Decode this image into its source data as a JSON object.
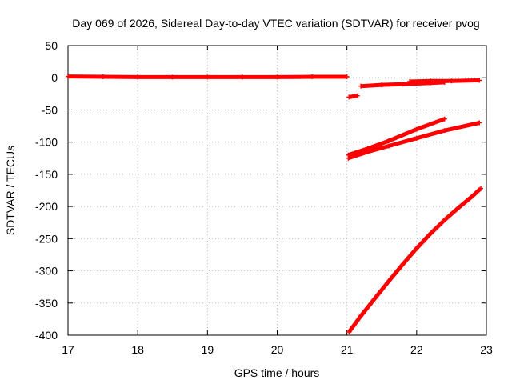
{
  "chart_data": {
    "type": "scatter",
    "title": "Day 069 of 2026, Sidereal Day-to-day VTEC variation (SDTVAR) for receiver pvog",
    "xlabel": "GPS time / hours",
    "ylabel": "SDTVAR / TECUs",
    "xlim": [
      17,
      23
    ],
    "ylim": [
      -400,
      50
    ],
    "xticks": [
      "17",
      "18",
      "19",
      "20",
      "21",
      "22",
      "23"
    ],
    "yticks": [
      "50",
      "0",
      "-50",
      "-100",
      "-150",
      "-200",
      "-250",
      "-300",
      "-350",
      "-400"
    ],
    "grid": true,
    "marker_color": "#ff0000",
    "series": [
      {
        "x": [
          17.0,
          17.5,
          18.0,
          18.5,
          19.0,
          19.5,
          20.0,
          20.5,
          21.0
        ],
        "y": [
          2,
          1.5,
          1,
          1,
          1,
          1,
          1,
          1.5,
          1.5
        ]
      },
      {
        "x": [
          21.03,
          21.15
        ],
        "y": [
          -30,
          -28
        ]
      },
      {
        "x": [
          21.2,
          21.5,
          21.8,
          22.0,
          22.2,
          22.4
        ],
        "y": [
          -13,
          -11,
          -10,
          -9,
          -8,
          -7
        ]
      },
      {
        "x": [
          21.9,
          22.2,
          22.5,
          22.9
        ],
        "y": [
          -6,
          -5,
          -5,
          -4
        ]
      },
      {
        "x": [
          21.02,
          21.3,
          21.6,
          22.0,
          22.4
        ],
        "y": [
          -120,
          -110,
          -98,
          -80,
          -64
        ]
      },
      {
        "x": [
          21.02,
          21.3,
          21.6,
          22.0,
          22.4,
          22.9
        ],
        "y": [
          -125,
          -115,
          -106,
          -94,
          -82,
          -70
        ]
      },
      {
        "x": [
          21.03,
          21.2,
          21.4,
          21.6,
          21.8,
          22.0,
          22.2,
          22.4,
          22.6,
          22.8,
          22.92
        ],
        "y": [
          -395,
          -370,
          -343,
          -316,
          -290,
          -265,
          -242,
          -221,
          -202,
          -184,
          -172
        ]
      }
    ]
  }
}
